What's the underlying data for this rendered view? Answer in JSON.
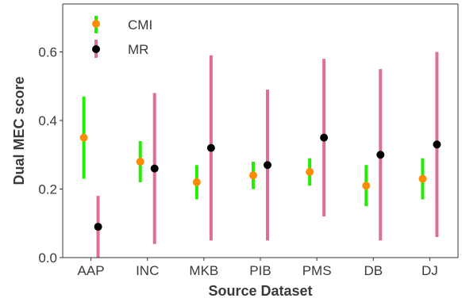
{
  "chart_data": {
    "type": "scatter",
    "xlabel": "Source Dataset",
    "ylabel": "Dual MEC score",
    "categories": [
      "AAP",
      "INC",
      "MKB",
      "PIB",
      "PMS",
      "DB",
      "DJ"
    ],
    "ylim": [
      0.0,
      0.74
    ],
    "yticks": [
      "0.0",
      "0.2",
      "0.4",
      "0.6"
    ],
    "grid": false,
    "legend_position": "top-left",
    "series": [
      {
        "name": "CMI",
        "marker_color": "#ff8c00",
        "errorbar_color": "#22ee00",
        "values": [
          0.35,
          0.28,
          0.22,
          0.24,
          0.25,
          0.21,
          0.23
        ],
        "lower": [
          0.23,
          0.22,
          0.17,
          0.2,
          0.21,
          0.15,
          0.17
        ],
        "upper": [
          0.47,
          0.34,
          0.27,
          0.28,
          0.29,
          0.27,
          0.29
        ]
      },
      {
        "name": "MR",
        "marker_color": "#000000",
        "errorbar_color": "#db7093",
        "values": [
          0.09,
          0.26,
          0.32,
          0.27,
          0.35,
          0.3,
          0.33
        ],
        "lower": [
          0.0,
          0.04,
          0.05,
          0.05,
          0.12,
          0.05,
          0.06
        ],
        "upper": [
          0.18,
          0.48,
          0.59,
          0.49,
          0.58,
          0.55,
          0.6
        ]
      }
    ]
  }
}
